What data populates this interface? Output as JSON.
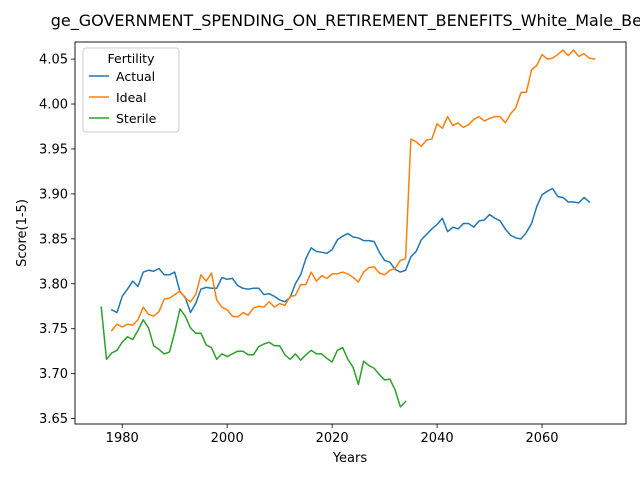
{
  "chart_data": {
    "type": "line",
    "title": "ge_GOVERNMENT_SPENDING_ON_RETIREMENT_BENEFITS_White_Male_Below",
    "xlabel": "Years",
    "ylabel": "Score(1-5)",
    "xlim": [
      1971,
      2076
    ],
    "ylim": [
      3.644,
      4.069
    ],
    "x_ticks": [
      1980,
      2000,
      2020,
      2040,
      2060
    ],
    "y_ticks": [
      3.65,
      3.7,
      3.75,
      3.8,
      3.85,
      3.9,
      3.95,
      4.0,
      4.05
    ],
    "x_tick_labels": [
      "1980",
      "2000",
      "2020",
      "2040",
      "2060"
    ],
    "y_tick_labels": [
      "3.65",
      "3.70",
      "3.75",
      "3.80",
      "3.85",
      "3.90",
      "3.95",
      "4.00",
      "4.05"
    ],
    "grid": false,
    "legend": {
      "title": "Fertility",
      "placement": "top-left"
    },
    "series": [
      {
        "name": "Actual",
        "color": "#1f77b4",
        "x_start": 1978,
        "values": [
          3.771,
          3.768,
          3.786,
          3.794,
          3.803,
          3.797,
          3.813,
          3.815,
          3.814,
          3.817,
          3.81,
          3.81,
          3.813,
          3.791,
          3.785,
          3.768,
          3.778,
          3.794,
          3.796,
          3.795,
          3.795,
          3.807,
          3.805,
          3.806,
          3.798,
          3.795,
          3.794,
          3.795,
          3.795,
          3.788,
          3.789,
          3.786,
          3.782,
          3.78,
          3.785,
          3.8,
          3.81,
          3.828,
          3.84,
          3.836,
          3.835,
          3.834,
          3.838,
          3.849,
          3.853,
          3.856,
          3.852,
          3.851,
          3.848,
          3.848,
          3.847,
          3.835,
          3.826,
          3.824,
          3.816,
          3.813,
          3.815,
          3.83,
          3.836,
          3.849,
          3.855,
          3.861,
          3.866,
          3.873,
          3.858,
          3.863,
          3.861,
          3.867,
          3.867,
          3.863,
          3.87,
          3.871,
          3.877,
          3.873,
          3.87,
          3.861,
          3.854,
          3.851,
          3.85,
          3.857,
          3.867,
          3.886,
          3.899,
          3.903,
          3.906,
          3.897,
          3.896,
          3.891,
          3.891,
          3.89,
          3.896,
          3.891
        ]
      },
      {
        "name": "Ideal",
        "color": "#ff7f0e",
        "x_start": 1978,
        "values": [
          3.748,
          3.755,
          3.752,
          3.755,
          3.754,
          3.76,
          3.774,
          3.766,
          3.764,
          3.769,
          3.783,
          3.784,
          3.788,
          3.792,
          3.784,
          3.78,
          3.788,
          3.81,
          3.803,
          3.812,
          3.782,
          3.774,
          3.771,
          3.764,
          3.763,
          3.768,
          3.765,
          3.773,
          3.775,
          3.774,
          3.78,
          3.774,
          3.778,
          3.776,
          3.786,
          3.787,
          3.799,
          3.799,
          3.813,
          3.803,
          3.809,
          3.806,
          3.811,
          3.811,
          3.813,
          3.811,
          3.807,
          3.802,
          3.813,
          3.818,
          3.819,
          3.812,
          3.81,
          3.815,
          3.817,
          3.826,
          3.828,
          3.961,
          3.958,
          3.953,
          3.96,
          3.961,
          3.978,
          3.973,
          3.986,
          3.976,
          3.979,
          3.974,
          3.977,
          3.983,
          3.986,
          3.981,
          3.984,
          3.986,
          3.986,
          3.979,
          3.989,
          3.996,
          4.013,
          4.013,
          4.038,
          4.043,
          4.055,
          4.05,
          4.051,
          4.055,
          4.06,
          4.054,
          4.06,
          4.053,
          4.056,
          4.051,
          4.05
        ]
      },
      {
        "name": "Sterile",
        "color": "#2ca02c",
        "x_start": 1976,
        "values": [
          3.774,
          3.716,
          3.723,
          3.726,
          3.735,
          3.741,
          3.738,
          3.748,
          3.76,
          3.751,
          3.731,
          3.727,
          3.722,
          3.724,
          3.746,
          3.772,
          3.764,
          3.751,
          3.745,
          3.745,
          3.732,
          3.729,
          3.716,
          3.722,
          3.719,
          3.722,
          3.725,
          3.725,
          3.721,
          3.721,
          3.73,
          3.733,
          3.735,
          3.731,
          3.731,
          3.721,
          3.716,
          3.722,
          3.715,
          3.721,
          3.726,
          3.722,
          3.722,
          3.717,
          3.713,
          3.726,
          3.729,
          3.716,
          3.707,
          3.688,
          3.714,
          3.709,
          3.706,
          3.699,
          3.693,
          3.694,
          3.682,
          3.663,
          3.669
        ]
      }
    ]
  }
}
